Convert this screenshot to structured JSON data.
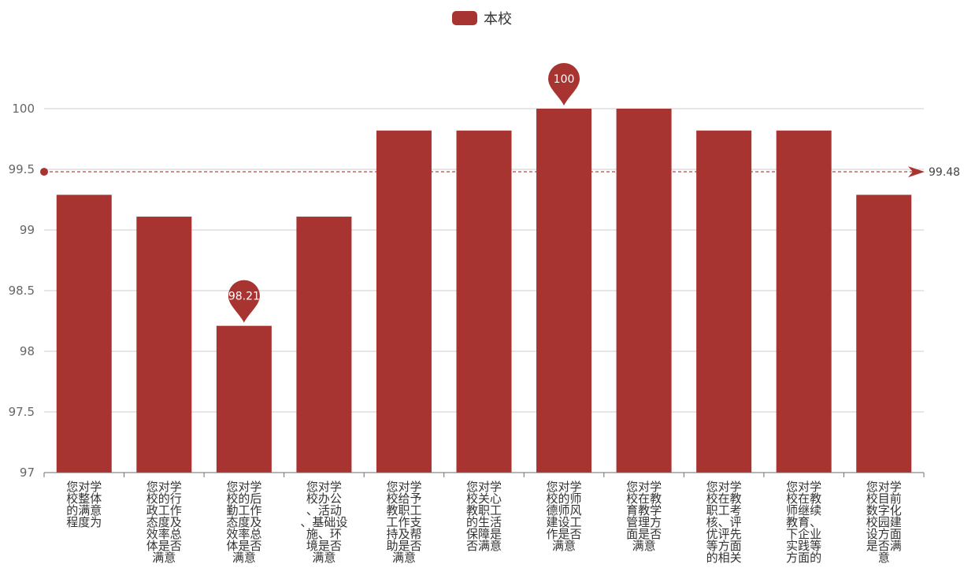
{
  "chart_data": {
    "type": "bar",
    "title": "",
    "legend": {
      "position": "top-center",
      "entries": [
        "本校"
      ]
    },
    "xlabel": "",
    "ylabel": "",
    "ylim": [
      97,
      100
    ],
    "yticks": [
      "97",
      "97.5",
      "98",
      "98.5",
      "99",
      "99.5",
      "100"
    ],
    "grid": true,
    "colors": {
      "bar": "#a83432",
      "axis": "#6e6e6e",
      "grid": "#cccccc"
    },
    "categories": [
      "您对学校整体的满意程度为",
      "您对学校的行政工作态度及效率总体是否满意",
      "您对学校的后勤工作态度及效率总体是否满意",
      "您对学校办公、活动、基础设施、环境是否满意",
      "您对学校给予教职工工作支持及帮助是否满意",
      "您对学校关心教职工的生活保障是否满意",
      "您对学校的师德师风建设工作是否满意",
      "您对学校在教育教学管理方面是否满意",
      "您对学校在教职工考核、评优评先等方面的相关",
      "您对学校在教师继续教育、下企业实践等方面的",
      "您对学校目前数字化校园建设方面是否满意"
    ],
    "category_lines": [
      [
        "您对学",
        "校整体",
        "的满意",
        "程度为"
      ],
      [
        "您对学",
        "校的行",
        "政工作",
        "态度及",
        "效率总",
        "体是否",
        "满意"
      ],
      [
        "您对学",
        "校的后",
        "勤工作",
        "态度及",
        "效率总",
        "体是否",
        "满意"
      ],
      [
        "您对学",
        "校办公",
        "、活动",
        "、基础设",
        "施、环",
        "境是否",
        "满意"
      ],
      [
        "您对学",
        "校给予",
        "教职工",
        "工作支",
        "持及帮",
        "助是否",
        "满意"
      ],
      [
        "您对学",
        "校关心",
        "教职工",
        "的生活",
        "保障是",
        "否满意"
      ],
      [
        "您对学",
        "校的师",
        "德师风",
        "建设工",
        "作是否",
        "满意"
      ],
      [
        "您对学",
        "校在教",
        "育教学",
        "管理方",
        "面是否",
        "满意"
      ],
      [
        "您对学",
        "校在教",
        "职工考",
        "核、评",
        "优评先",
        "等方面",
        "的相关"
      ],
      [
        "您对学",
        "校在教",
        "师继续",
        "教育、",
        "下企业",
        "实践等",
        "方面的"
      ],
      [
        "您对学",
        "校目前",
        "数字化",
        "校园建",
        "设方面",
        "是否满",
        "意"
      ]
    ],
    "series": [
      {
        "name": "本校",
        "values": [
          99.29,
          99.11,
          98.21,
          99.11,
          99.82,
          99.82,
          100,
          100,
          99.82,
          99.82,
          99.29
        ]
      }
    ],
    "mark_points": [
      {
        "label": "98.21",
        "index": 2,
        "value": 98.21
      },
      {
        "label": "100",
        "index": 6,
        "value": 100
      }
    ],
    "mark_line": {
      "label": "99.48",
      "value": 99.48
    }
  }
}
